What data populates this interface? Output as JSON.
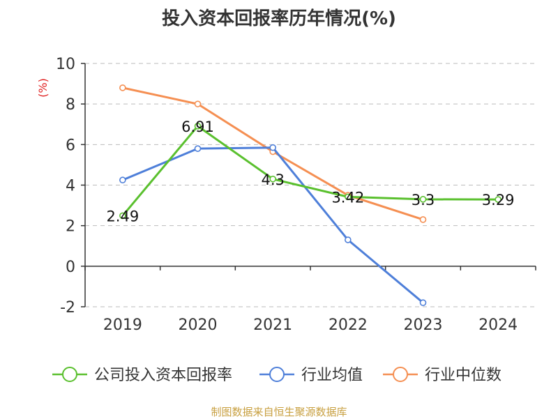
{
  "title": "投入资本回报率历年情况(%)",
  "source": "制图数据来自恒生聚源数据库",
  "colors": {
    "company": "#5ac02e",
    "industry_avg": "#4e7fd9",
    "industry_median": "#f58f52",
    "axis": "#333333",
    "grid": "#bbbbbb",
    "unit_label": "#e02020"
  },
  "chart_data": {
    "type": "line",
    "title": "投入资本回报率历年情况(%)",
    "ylabel": "(%)",
    "xlabel": "",
    "categories": [
      "2019",
      "2020",
      "2021",
      "2022",
      "2023",
      "2024"
    ],
    "ylim": [
      -2,
      10
    ],
    "yticks": [
      -2,
      0,
      2,
      4,
      6,
      8,
      10
    ],
    "ytick_labels": [
      "-2",
      "0",
      "2",
      "4",
      "6",
      "8",
      "10"
    ],
    "grid": true,
    "legend": "bottom",
    "series": [
      {
        "name": "公司投入资本回报率",
        "color_key": "company",
        "values": [
          2.49,
          6.91,
          4.3,
          3.42,
          3.3,
          3.29
        ],
        "labels": [
          "2.49",
          "6.91",
          "4.3",
          "3.42",
          "3.3",
          "3.29"
        ]
      },
      {
        "name": "行业均值",
        "color_key": "industry_avg",
        "values": [
          4.25,
          5.8,
          5.85,
          1.3,
          -1.8,
          null
        ]
      },
      {
        "name": "行业中位数",
        "color_key": "industry_median",
        "values": [
          8.8,
          8.0,
          5.65,
          3.5,
          2.3,
          null
        ]
      }
    ]
  }
}
